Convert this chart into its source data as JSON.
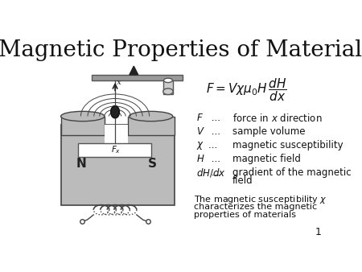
{
  "title": "Magnetic Properties of Materials",
  "title_fontsize": 20,
  "background_color": "#ffffff",
  "legend_items": [
    {
      "symbol": "$F$",
      "dots": " ...  ",
      "desc": "force in $x$ direction"
    },
    {
      "symbol": "$V$",
      "dots": " ...  ",
      "desc": "sample volume"
    },
    {
      "symbol": "$\\chi$",
      "dots": "...  ",
      "desc": "magnetic susceptibility"
    },
    {
      "symbol": "$H$",
      "dots": " ...  ",
      "desc": "magnetic field"
    },
    {
      "symbol": "$dH/dx$",
      "dots": " ... ",
      "desc": "gradient of the magnetic\n        field"
    }
  ],
  "footer_line1": "The magnetic susceptibility $\\chi$",
  "footer_line2": "characterizes the magnetic",
  "footer_line3": "properties of materials",
  "slide_number": "1",
  "text_color": "#111111",
  "magnet_color": "#bbbbbb",
  "magnet_edge": "#444444",
  "coil_color": "#555555"
}
